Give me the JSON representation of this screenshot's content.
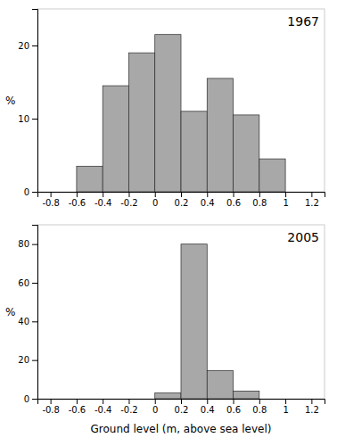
{
  "chart_data": [
    {
      "type": "histogram",
      "title": "1967",
      "ylabel": "%",
      "bins": [
        -0.8,
        -0.6,
        -0.4,
        -0.2,
        0,
        0.2,
        0.4,
        0.6,
        0.8,
        1.0,
        1.2
      ],
      "values": [
        0,
        3.5,
        14.5,
        19,
        21.5,
        11,
        15.5,
        10.5,
        4.5,
        0
      ],
      "color": "#a8a8a8",
      "xlim": [
        -0.9,
        1.3
      ],
      "xticks": [
        -0.8,
        -0.6,
        -0.4,
        -0.2,
        0,
        0.2,
        0.4,
        0.6,
        0.8,
        1,
        1.2
      ],
      "ylim": [
        0,
        25
      ],
      "yticks": [
        0,
        10,
        20
      ]
    },
    {
      "type": "histogram",
      "title": "2005",
      "ylabel": "%",
      "xlabel": "Ground level (m, above sea level)",
      "bins": [
        -0.8,
        -0.6,
        -0.4,
        -0.2,
        0,
        0.2,
        0.4,
        0.6,
        0.8,
        1.0,
        1.2
      ],
      "values": [
        0,
        0,
        0,
        0,
        3,
        80,
        14.5,
        4,
        0,
        0
      ],
      "color": "#a8a8a8",
      "xlim": [
        -0.9,
        1.3
      ],
      "xticks": [
        -0.8,
        -0.6,
        -0.4,
        -0.2,
        0,
        0.2,
        0.4,
        0.6,
        0.8,
        1,
        1.2
      ],
      "ylim": [
        0,
        90
      ],
      "yticks": [
        0,
        20,
        40,
        60,
        80
      ]
    }
  ]
}
